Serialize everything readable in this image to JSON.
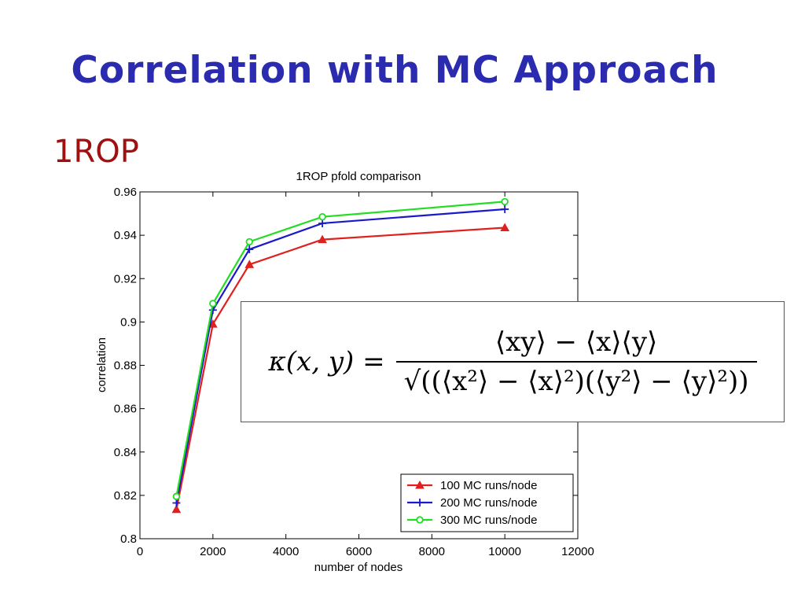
{
  "slide": {
    "title": "Correlation with MC Approach",
    "subheading": "1ROP"
  },
  "formula": {
    "lhs": "κ(x, y) =",
    "numerator": "⟨xy⟩ − ⟨x⟩⟨y⟩",
    "denominator": "√((⟨x²⟩ − ⟨x⟩²)(⟨y²⟩ − ⟨y⟩²))"
  },
  "chart_data": {
    "type": "line",
    "title": "1ROP pfold comparison",
    "xlabel": "number of nodes",
    "ylabel": "correlation",
    "xlim": [
      0,
      12000
    ],
    "ylim": [
      0.8,
      0.96
    ],
    "x_ticks": [
      0,
      2000,
      4000,
      6000,
      8000,
      10000,
      12000
    ],
    "y_ticks": [
      0.8,
      0.82,
      0.84,
      0.86,
      0.88,
      0.9,
      0.92,
      0.94,
      0.96
    ],
    "y_tick_labels": [
      "0.8",
      "0.82",
      "0.84",
      "0.86",
      "0.88",
      "0.9",
      "0.92",
      "0.94",
      "0.96"
    ],
    "grid": false,
    "legend_position": "bottom-right",
    "series": [
      {
        "name": "100 MC runs/node",
        "color": "#e0201c",
        "marker": "triangle",
        "x": [
          1000,
          2000,
          3000,
          5000,
          10000
        ],
        "values": [
          0.8135,
          0.899,
          0.9265,
          0.938,
          0.9435
        ]
      },
      {
        "name": "200 MC runs/node",
        "color": "#1a1acc",
        "marker": "plus",
        "x": [
          1000,
          2000,
          3000,
          5000,
          10000
        ],
        "values": [
          0.8165,
          0.9055,
          0.9335,
          0.9455,
          0.952
        ]
      },
      {
        "name": "300 MC runs/node",
        "color": "#22dd22",
        "marker": "circle",
        "x": [
          1000,
          2000,
          3000,
          5000,
          10000
        ],
        "values": [
          0.8195,
          0.9085,
          0.937,
          0.9485,
          0.9555
        ]
      }
    ]
  }
}
